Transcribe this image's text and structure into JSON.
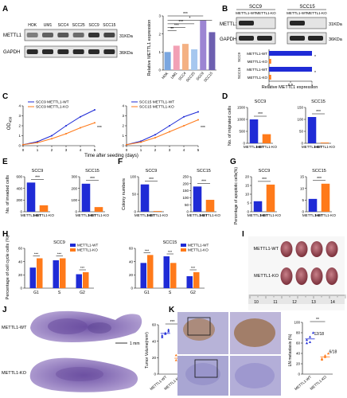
{
  "colors": {
    "wt": "#1f2bd6",
    "ko": "#ff7a1a",
    "blot_bg": "#e9e9e9",
    "band": "#2a2a2a",
    "he": "#8e72b6",
    "ihc": "#a98a6a",
    "tumor": "#9c4a56"
  },
  "letters": {
    "A": "A",
    "B": "B",
    "C": "C",
    "D": "D",
    "E": "E",
    "F": "F",
    "G": "G",
    "H": "H",
    "I": "I",
    "J": "J",
    "K": "K"
  },
  "groups": {
    "wt": "METTL1-WT",
    "ko": "METTL1-KO",
    "scc9": "SCC9",
    "scc15": "SCC15"
  },
  "panelA": {
    "blot_labels": [
      "METTL1",
      "GAPDH"
    ],
    "lanes": [
      "HOK",
      "UM1",
      "SCC4",
      "SCC25",
      "SCC9",
      "SCC15"
    ],
    "sizes": [
      "31KDa",
      "36KDa"
    ],
    "chart_data": {
      "type": "bar",
      "ylabel": "Relative METTL1 expression",
      "ylim": [
        0,
        3
      ],
      "yticks": [
        "0",
        "1",
        "2",
        "3"
      ],
      "categories": [
        "HOK",
        "UM1",
        "SCC4",
        "SCC25",
        "SCC9",
        "SCC15"
      ],
      "values": [
        1.0,
        1.35,
        1.45,
        1.15,
        2.75,
        2.1
      ],
      "colors": [
        "#7aa6e0",
        "#f2a0b5",
        "#f4b183",
        "#a6c7ef",
        "#9c85d3",
        "#6d5fb0"
      ],
      "sig": [
        "***",
        "*",
        "***",
        "***",
        "**"
      ]
    }
  },
  "panelB": {
    "blot_labels": [
      "METTL1",
      "GAPDH"
    ],
    "sizes": [
      "31KDa",
      "36KDa"
    ],
    "chart_data": {
      "type": "bar",
      "orientation": "horizontal",
      "xlabel": "Relative METTL1 expression",
      "xlim": [
        0,
        1
      ],
      "xticks": [
        "0",
        "0.5",
        "1"
      ],
      "group_labels": [
        "SCC9",
        "SCC15"
      ],
      "categories": [
        "METTL1-WT",
        "METTL1-KO",
        "METTL1-WT",
        "METTL1-KO"
      ],
      "values": [
        1.0,
        0.05,
        1.0,
        0.05
      ]
    }
  },
  "panelC": {
    "ylabel": "OD",
    "ylabel_sub": "450",
    "xlabel": "Time after seeding (days)",
    "legend": [
      "SCC9 METTL1-WT",
      "SCC9 METTL1-KO",
      "SCC15 METTL1-WT",
      "SCC15 METTL1-KO"
    ],
    "sig": "***",
    "chart_data": {
      "type": "line",
      "x": [
        0,
        1,
        2,
        3,
        4,
        5
      ],
      "xticks": [
        "0",
        "1",
        "2",
        "3",
        "4",
        "5"
      ],
      "ylim": [
        0,
        4
      ],
      "yticks": [
        "0",
        "1",
        "2",
        "3",
        "4"
      ],
      "series": [
        {
          "name": "SCC9 METTL1-WT",
          "values": [
            0.1,
            0.4,
            1.0,
            2.0,
            2.9,
            3.6
          ]
        },
        {
          "name": "SCC9 METTL1-KO",
          "values": [
            0.1,
            0.3,
            0.7,
            1.2,
            1.8,
            2.3
          ]
        },
        {
          "name": "SCC15 METTL1-WT",
          "values": [
            0.1,
            0.45,
            1.1,
            2.0,
            2.9,
            3.4
          ]
        },
        {
          "name": "SCC15 METTL1-KO",
          "values": [
            0.1,
            0.35,
            0.8,
            1.4,
            2.0,
            2.6
          ]
        }
      ]
    }
  },
  "panelD": {
    "ylabel": "No. of migrated cells",
    "chart_data": {
      "type": "bar",
      "charts": [
        {
          "title": "SCC9",
          "ylim": [
            0,
            1500
          ],
          "yticks": [
            "0",
            "500",
            "1000",
            "1500"
          ],
          "values": [
            1000,
            380
          ],
          "sig": "***"
        },
        {
          "title": "SCC15",
          "ylim": [
            0,
            150
          ],
          "yticks": [
            "0",
            "50",
            "100",
            "150"
          ],
          "values": [
            110,
            3
          ],
          "sig": "***"
        }
      ]
    }
  },
  "panelE": {
    "ylabel": "No. of invaded cells",
    "chart_data": {
      "type": "bar",
      "charts": [
        {
          "title": "SCC9",
          "ylim": [
            0,
            600
          ],
          "yticks": [
            "0",
            "200",
            "400",
            "600"
          ],
          "values": [
            500,
            110
          ],
          "sig": "***"
        },
        {
          "title": "SCC15",
          "ylim": [
            0,
            300
          ],
          "yticks": [
            "0",
            "100",
            "200",
            "300"
          ],
          "values": [
            240,
            40
          ],
          "sig": "***"
        }
      ]
    }
  },
  "panelF": {
    "ylabel": "Colony numbers",
    "chart_data": {
      "type": "bar",
      "charts": [
        {
          "title": "SCC9",
          "ylim": [
            0,
            100
          ],
          "yticks": [
            "0",
            "50",
            "100"
          ],
          "values": [
            78,
            2
          ],
          "sig": "***"
        },
        {
          "title": "SCC15",
          "ylim": [
            0,
            250
          ],
          "yticks": [
            "0",
            "50",
            "100",
            "150",
            "200",
            "250"
          ],
          "values": [
            180,
            85
          ],
          "sig": "***"
        }
      ]
    }
  },
  "panelG": {
    "ylabel": "Percentage of apoptotic cells(%)",
    "chart_data": {
      "type": "bar",
      "charts": [
        {
          "title": "SCC9",
          "ylim": [
            0,
            20
          ],
          "yticks": [
            "0",
            "5",
            "10",
            "15",
            "20"
          ],
          "values": [
            6,
            15.5
          ],
          "sig": "***"
        },
        {
          "title": "SCC15",
          "ylim": [
            0,
            15
          ],
          "yticks": [
            "0",
            "5",
            "10",
            "15"
          ],
          "values": [
            5.5,
            12
          ],
          "sig": "***"
        }
      ]
    }
  },
  "panelH": {
    "ylabel": "Percentage of cell cycle cells (%)",
    "legend": [
      "METTL1-WT",
      "METTL1-KO"
    ],
    "chart_data": {
      "type": "bar",
      "grouped": true,
      "charts": [
        {
          "title": "SCC9",
          "categories": [
            "G1",
            "S",
            "G2"
          ],
          "ylim": [
            0,
            60
          ],
          "yticks": [
            "0",
            "20",
            "40",
            "60"
          ],
          "series": [
            {
              "name": "METTL1-WT",
              "values": [
                31,
                42,
                21
              ]
            },
            {
              "name": "METTL1-KO",
              "values": [
                45,
                45,
                24
              ]
            }
          ],
          "sig": [
            "***",
            "***",
            "***"
          ]
        },
        {
          "title": "SCC15",
          "categories": [
            "G1",
            "S",
            "G2"
          ],
          "ylim": [
            0,
            60
          ],
          "yticks": [
            "0",
            "20",
            "40",
            "60"
          ],
          "series": [
            {
              "name": "METTL1-WT",
              "values": [
                38,
                48,
                18
              ]
            },
            {
              "name": "METTL1-KO",
              "values": [
                50,
                38,
                24
              ]
            }
          ],
          "sig": [
            "***",
            "***",
            "***"
          ]
        }
      ]
    }
  },
  "panelI": {
    "labels": [
      "METTL1-WT",
      "METTL1-KO"
    ],
    "ruler": [
      "10",
      "11",
      "12",
      "13",
      "14"
    ]
  },
  "panelJ": {
    "labels": [
      "METTL1-WT",
      "METTL1-KO"
    ],
    "scale": "1 mm",
    "ylabel": "Tumor Volume(mm³)",
    "chart_data": {
      "type": "scatter",
      "ylim": [
        0,
        60
      ],
      "yticks": [
        "0",
        "20",
        "40",
        "60"
      ],
      "categories": [
        "METTL1-WT",
        "METTL1-KO"
      ],
      "values": [
        [
          45,
          49,
          52,
          47,
          50,
          54
        ],
        [
          17,
          19,
          21,
          23,
          20,
          16
        ]
      ],
      "sig": "***"
    }
  },
  "panelK": {
    "ylabel": "LN metastasis (%)",
    "annot": [
      "12/18",
      "6/18"
    ],
    "chart_data": {
      "type": "scatter",
      "ylim": [
        0,
        100
      ],
      "yticks": [
        "0",
        "20",
        "40",
        "60",
        "80",
        "100"
      ],
      "categories": [
        "METTL1-WT",
        "METTL1-KO"
      ],
      "values": [
        [
          60,
          72,
          80,
          66,
          62
        ],
        [
          30,
          36,
          40,
          28,
          33
        ]
      ],
      "sig": "**"
    }
  }
}
